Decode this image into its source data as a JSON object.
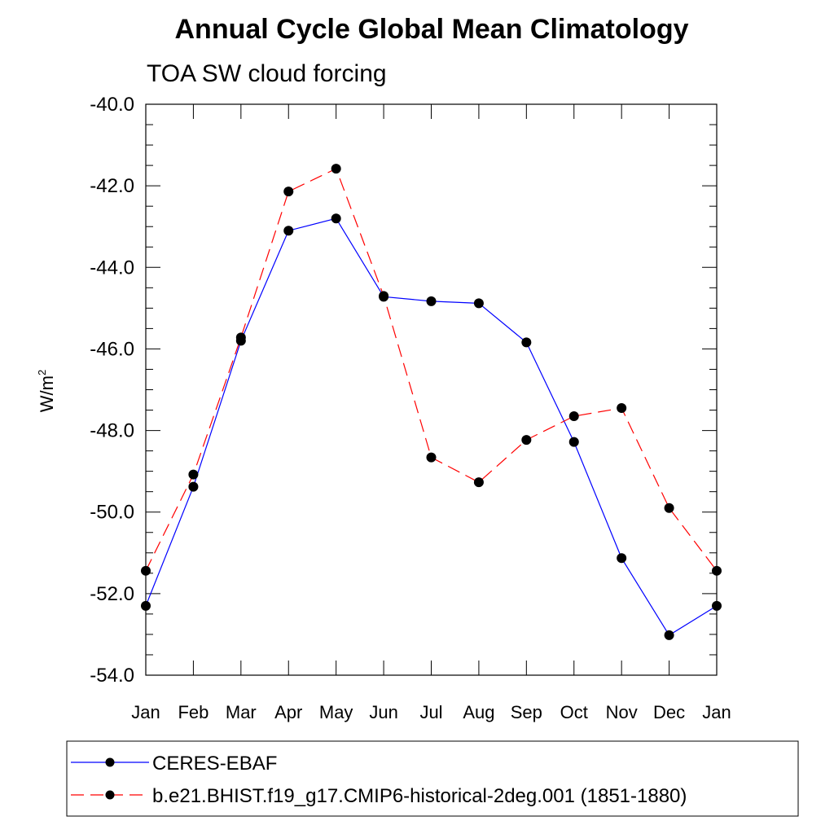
{
  "chart_data": {
    "type": "line",
    "title": "Annual Cycle Global Mean Climatology",
    "subtitle": "TOA SW cloud forcing",
    "ylabel": "W/m",
    "ylabel_sup": "2",
    "xlabel": "",
    "categories": [
      "Jan",
      "Feb",
      "Mar",
      "Apr",
      "May",
      "Jun",
      "Jul",
      "Aug",
      "Sep",
      "Oct",
      "Nov",
      "Dec",
      "Jan"
    ],
    "ylim": [
      -54.0,
      -40.0
    ],
    "yticks": [
      "-40.0",
      "-42.0",
      "-44.0",
      "-46.0",
      "-48.0",
      "-50.0",
      "-52.0",
      "-54.0"
    ],
    "grid": false,
    "legend_position": "bottom",
    "series": [
      {
        "name": "CERES-EBAF",
        "color": "#0000ff",
        "dash": "solid",
        "values": [
          -52.3,
          -49.38,
          -45.8,
          -43.1,
          -42.8,
          -44.72,
          -44.83,
          -44.88,
          -45.84,
          -48.28,
          -51.13,
          -53.02,
          -52.3
        ]
      },
      {
        "name": "b.e21.BHIST.f19_g17.CMIP6-historical-2deg.001 (1851-1880)",
        "color": "#ff0000",
        "dash": "dashed",
        "values": [
          -51.44,
          -49.08,
          -45.72,
          -42.14,
          -41.58,
          -44.7,
          -48.66,
          -49.27,
          -48.23,
          -47.65,
          -47.45,
          -49.9,
          -51.44
        ]
      }
    ]
  }
}
